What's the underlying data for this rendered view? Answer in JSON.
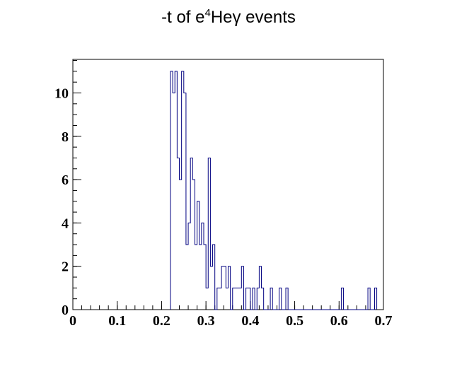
{
  "chart_data": {
    "type": "histogram",
    "title_parts": [
      "-t of e",
      "4",
      "He",
      "γ",
      " events"
    ],
    "xlabel": "",
    "ylabel": "",
    "xlim": [
      0,
      0.7
    ],
    "ylim": [
      0,
      11.55
    ],
    "xticks": [
      0,
      0.1,
      0.2,
      0.3,
      0.4,
      0.5,
      0.6,
      0.7
    ],
    "xtick_labels": [
      "0",
      "0.1",
      "0.2",
      "0.3",
      "0.4",
      "0.5",
      "0.6",
      "0.7"
    ],
    "yticks": [
      0,
      2,
      4,
      6,
      8,
      10
    ],
    "ytick_labels": [
      "0",
      "2",
      "4",
      "6",
      "8",
      "10"
    ],
    "bin_width": 0.005,
    "bins_start": 0.22,
    "counts": [
      11,
      10,
      11,
      7,
      6,
      11,
      10,
      3,
      4,
      7,
      6,
      3,
      5,
      3,
      4,
      3,
      1,
      7,
      2,
      3,
      0,
      1,
      1,
      2,
      2,
      1,
      2,
      0,
      1,
      1,
      1,
      1,
      2,
      0,
      1,
      1,
      0,
      1,
      0,
      1,
      2,
      1,
      0,
      0,
      0,
      1,
      0,
      0,
      0,
      1,
      0,
      0,
      1,
      0,
      0,
      0,
      0,
      0,
      0,
      0,
      0,
      0,
      0,
      0,
      0,
      0,
      0,
      0,
      0,
      0,
      0,
      0,
      0,
      0,
      0,
      0,
      0,
      1,
      0,
      0,
      0,
      0,
      0,
      0,
      0,
      0,
      0,
      0,
      0,
      1,
      0,
      0,
      1
    ],
    "grid": false,
    "legend": "none",
    "colors": {
      "line": "#000080",
      "frame": "#000000",
      "background": "#ffffff"
    }
  }
}
